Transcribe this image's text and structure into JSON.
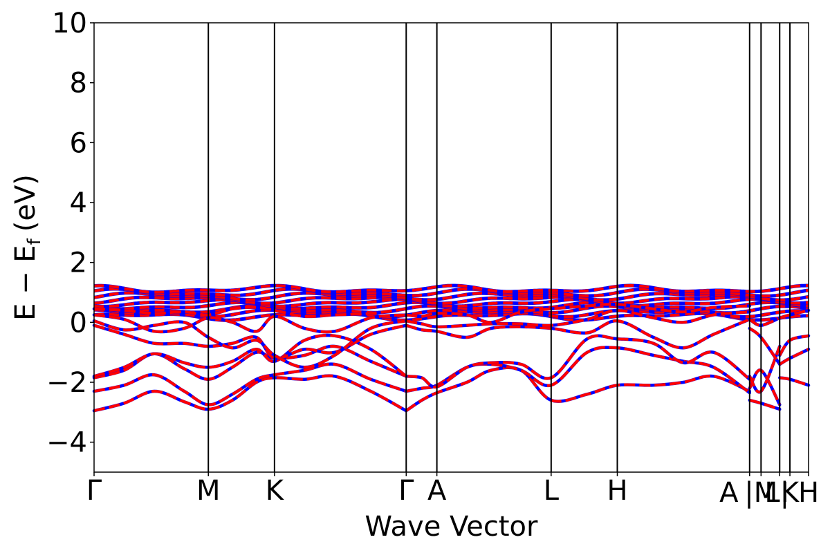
{
  "chart_data": {
    "type": "line",
    "title": "",
    "xlabel": "Wave Vector",
    "ylabel": "E − E_f (eV)",
    "ylabel_parts": {
      "main": "E − E",
      "sub": "f",
      "unit": "(eV)"
    },
    "ylim": [
      -5,
      10
    ],
    "yticks": [
      -4,
      -2,
      0,
      2,
      4,
      6,
      8,
      10
    ],
    "ytick_labels": [
      "−4",
      "−2",
      "0",
      "2",
      "4",
      "6",
      "8",
      "10"
    ],
    "grid": false,
    "legend": "none",
    "xlim": [
      0,
      11.88
    ],
    "high_symmetry_points": [
      {
        "label": "Γ",
        "x": 0.0
      },
      {
        "label": "M",
        "x": 1.9
      },
      {
        "label": "K",
        "x": 3.0
      },
      {
        "label": "Γ",
        "x": 5.19
      },
      {
        "label": "A",
        "x": 5.7
      },
      {
        "label": "L",
        "x": 7.6
      },
      {
        "label": "H",
        "x": 8.7
      },
      {
        "label": "A",
        "x": 10.9
      },
      {
        "label": "|M",
        "x": 11.09
      },
      {
        "label": "L|",
        "x": 11.4
      },
      {
        "label": "K",
        "x": 11.57
      },
      {
        "label": "H",
        "x": 11.88
      }
    ],
    "dense_band_region": {
      "emin": 0.2,
      "emax": 1.1
    },
    "series_styles": [
      {
        "color": "#0000ff",
        "dash": "none"
      },
      {
        "color": "#ff0000",
        "dash": "dashed"
      }
    ],
    "bands": [
      {
        "x": [
          0.0,
          0.5,
          1.0,
          1.5,
          1.9,
          2.3,
          2.7,
          3.0,
          3.5,
          4.0,
          4.6,
          5.19
        ],
        "y": [
          -2.95,
          -2.7,
          -2.3,
          -2.65,
          -2.9,
          -2.6,
          -2.0,
          -1.85,
          -1.9,
          -1.8,
          -2.3,
          -2.95
        ]
      },
      {
        "x": [
          5.19,
          5.45,
          5.7,
          6.2,
          6.6,
          7.1,
          7.6,
          8.2,
          8.7,
          9.3,
          9.8,
          10.3,
          10.9
        ],
        "y": [
          -2.95,
          -2.6,
          -2.35,
          -2.0,
          -1.6,
          -1.6,
          -2.6,
          -2.4,
          -2.1,
          -2.1,
          -2.0,
          -1.8,
          -2.3
        ]
      },
      {
        "x": [
          0.0,
          0.5,
          1.0,
          1.5,
          1.9,
          2.3,
          2.7,
          3.0,
          3.5,
          4.0,
          4.6,
          5.19
        ],
        "y": [
          -2.3,
          -2.1,
          -1.75,
          -2.3,
          -2.75,
          -2.4,
          -1.9,
          -1.75,
          -1.6,
          -1.4,
          -1.9,
          -2.3
        ]
      },
      {
        "x": [
          5.19,
          5.45,
          5.7,
          6.2,
          6.6,
          7.1,
          7.6,
          8.2,
          8.7,
          9.3,
          9.8,
          10.3,
          10.9
        ],
        "y": [
          -2.3,
          -2.2,
          -2.1,
          -1.5,
          -1.4,
          -1.6,
          -2.1,
          -1.0,
          -0.85,
          -1.1,
          -1.3,
          -1.5,
          -2.35
        ]
      },
      {
        "x": [
          0.0,
          0.5,
          1.0,
          1.5,
          1.9,
          2.3,
          2.7,
          3.0,
          3.5,
          4.0,
          4.6,
          5.19
        ],
        "y": [
          -1.85,
          -1.6,
          -1.05,
          -1.55,
          -1.9,
          -1.5,
          -1.0,
          -1.2,
          -1.1,
          -0.8,
          -1.3,
          -1.8
        ]
      },
      {
        "x": [
          5.19,
          5.45,
          5.7,
          6.2,
          6.6,
          7.1,
          7.6,
          8.2,
          8.7,
          9.3,
          9.8,
          10.3,
          10.9
        ],
        "y": [
          -1.8,
          -1.85,
          -2.15,
          -1.5,
          -1.35,
          -1.4,
          -1.85,
          -0.55,
          -0.55,
          -0.7,
          -1.35,
          -1.0,
          -1.9
        ]
      },
      {
        "x": [
          0.0,
          0.5,
          1.0,
          1.5,
          1.9,
          2.3,
          2.7,
          3.0,
          3.5,
          4.0,
          4.6,
          5.19
        ],
        "y": [
          -1.8,
          -1.5,
          -1.05,
          -1.35,
          -1.5,
          -1.3,
          -0.9,
          -1.3,
          -0.6,
          -0.45,
          -0.9,
          -1.8
        ]
      },
      {
        "x": [
          0.0,
          0.5,
          1.0,
          1.5,
          1.9,
          2.3,
          2.7,
          3.0,
          3.5,
          4.0,
          4.6,
          5.19
        ],
        "y": [
          -0.1,
          -0.4,
          -0.7,
          -0.7,
          -0.8,
          -0.7,
          -0.5,
          -1.2,
          -0.9,
          -1.0,
          -0.4,
          -0.1
        ]
      },
      {
        "x": [
          5.19,
          5.45,
          5.7,
          6.2,
          6.6,
          7.1,
          7.6,
          8.2,
          8.7,
          9.3,
          9.8,
          10.3,
          10.9
        ],
        "y": [
          -0.1,
          -0.25,
          -0.3,
          -0.5,
          -0.2,
          -0.15,
          -0.2,
          -0.35,
          0.05,
          -0.5,
          -0.85,
          -0.4,
          0.1
        ]
      },
      {
        "x": [
          0.0,
          0.5,
          1.0,
          1.5,
          1.9,
          2.3,
          2.7,
          3.0,
          3.5,
          4.0,
          4.6,
          5.19
        ],
        "y": [
          0.05,
          -0.25,
          -0.1,
          0.0,
          -0.5,
          -0.85,
          -0.6,
          -1.1,
          -1.5,
          -1.1,
          -0.2,
          0.05
        ]
      },
      {
        "x": [
          5.19,
          5.45,
          5.7,
          6.2,
          6.6,
          7.1,
          7.6,
          8.2,
          8.7,
          9.3,
          9.8,
          10.3,
          10.9
        ],
        "y": [
          0.05,
          -0.05,
          -0.15,
          -0.1,
          -0.05,
          -0.05,
          -0.1,
          0.1,
          0.4,
          0.15,
          0.0,
          0.25,
          0.35
        ]
      },
      {
        "x": [
          0.0,
          0.5,
          1.0,
          1.5,
          1.9,
          2.3,
          2.7,
          3.0,
          3.5,
          4.0,
          4.6,
          5.19
        ],
        "y": [
          0.25,
          0.1,
          -0.3,
          -0.2,
          0.15,
          0.0,
          -0.3,
          0.2,
          -0.2,
          -0.3,
          0.15,
          0.25
        ]
      },
      {
        "x": [
          5.19,
          5.45,
          5.7,
          6.2,
          6.6,
          7.1,
          7.6,
          8.2,
          8.7,
          9.3,
          9.8,
          10.3,
          10.9
        ],
        "y": [
          0.25,
          0.2,
          0.3,
          0.25,
          0.0,
          0.35,
          0.45,
          0.55,
          0.6,
          0.45,
          0.35,
          0.5,
          0.55
        ]
      },
      {
        "x": [
          0.0,
          0.5,
          1.0,
          1.5,
          1.9,
          2.3,
          2.7,
          3.0,
          3.5,
          4.0,
          4.6,
          5.19
        ],
        "y": [
          0.45,
          0.4,
          0.3,
          0.35,
          0.25,
          0.45,
          0.5,
          0.4,
          0.2,
          0.25,
          0.3,
          0.45
        ]
      },
      {
        "x": [
          10.9,
          11.09,
          11.4
        ],
        "y": [
          -2.6,
          -2.7,
          -2.9
        ]
      },
      {
        "x": [
          10.9,
          11.09,
          11.4
        ],
        "y": [
          -2.2,
          -1.6,
          -2.75
        ]
      },
      {
        "x": [
          10.9,
          11.09,
          11.4
        ],
        "y": [
          -1.8,
          -2.3,
          -0.8
        ]
      },
      {
        "x": [
          10.9,
          11.09,
          11.4
        ],
        "y": [
          -0.2,
          -0.5,
          -1.4
        ]
      },
      {
        "x": [
          10.9,
          11.09,
          11.4
        ],
        "y": [
          0.1,
          -0.1,
          0.15
        ]
      },
      {
        "x": [
          11.4,
          11.57,
          11.88
        ],
        "y": [
          -1.85,
          -1.9,
          -2.1
        ]
      },
      {
        "x": [
          11.4,
          11.57,
          11.88
        ],
        "y": [
          -1.4,
          -1.2,
          -0.9
        ]
      },
      {
        "x": [
          11.4,
          11.57,
          11.88
        ],
        "y": [
          -1.1,
          -0.6,
          -0.45
        ]
      },
      {
        "x": [
          11.4,
          11.57,
          11.88
        ],
        "y": [
          0.15,
          0.25,
          0.4
        ]
      }
    ]
  }
}
